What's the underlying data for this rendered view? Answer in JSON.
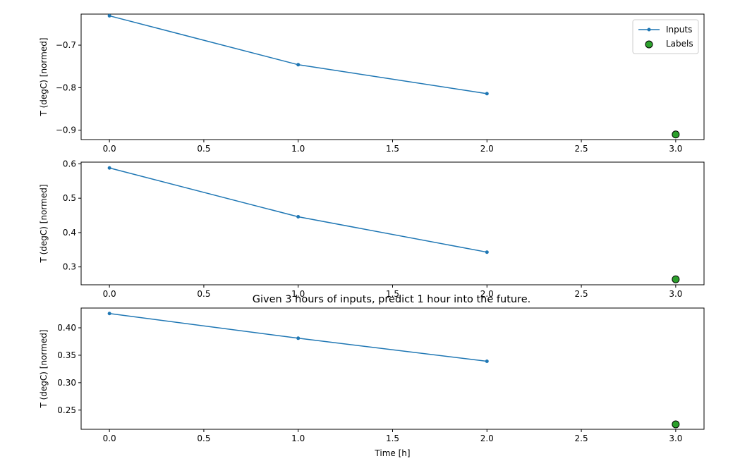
{
  "figure": {
    "title": "Given 3 hours of inputs, predict 1 hour into the future."
  },
  "legend": {
    "placement": "top-right",
    "entries": [
      "Inputs",
      "Labels"
    ]
  },
  "colors": {
    "inputs": "#1f77b4",
    "labels_fill": "#2ca02c",
    "labels_edge": "#000000",
    "axes": "#000000"
  },
  "chart_data": [
    {
      "type": "line",
      "xlabel": "",
      "ylabel": "T (degC) [normed]",
      "xlim": [
        -0.15,
        3.15
      ],
      "ylim": [
        -0.922,
        -0.627
      ],
      "grid": false,
      "xticks": [
        0.0,
        0.5,
        1.0,
        1.5,
        2.0,
        2.5,
        3.0
      ],
      "xtick_labels": [
        "0.0",
        "0.5",
        "1.0",
        "1.5",
        "2.0",
        "2.5",
        "3.0"
      ],
      "yticks": [
        -0.7,
        -0.8,
        -0.9
      ],
      "ytick_labels": [
        "−0.7",
        "−0.8",
        "−0.9"
      ],
      "series": [
        {
          "name": "Inputs",
          "kind": "line-marker",
          "x": [
            0,
            1,
            2
          ],
          "y": [
            -0.631,
            -0.746,
            -0.814
          ]
        },
        {
          "name": "Labels",
          "kind": "scatter",
          "x": [
            3
          ],
          "y": [
            -0.91
          ]
        }
      ]
    },
    {
      "type": "line",
      "xlabel": "",
      "ylabel": "T (degC) [normed]",
      "xlim": [
        -0.15,
        3.15
      ],
      "ylim": [
        0.248,
        0.605
      ],
      "grid": false,
      "xticks": [
        0.0,
        0.5,
        1.0,
        1.5,
        2.0,
        2.5,
        3.0
      ],
      "xtick_labels": [
        "0.0",
        "0.5",
        "1.0",
        "1.5",
        "2.0",
        "2.5",
        "3.0"
      ],
      "yticks": [
        0.6,
        0.5,
        0.4,
        0.3
      ],
      "ytick_labels": [
        "0.6",
        "0.5",
        "0.4",
        "0.3"
      ],
      "series": [
        {
          "name": "Inputs",
          "kind": "line-marker",
          "x": [
            0,
            1,
            2
          ],
          "y": [
            0.588,
            0.446,
            0.343
          ]
        },
        {
          "name": "Labels",
          "kind": "scatter",
          "x": [
            3
          ],
          "y": [
            0.264
          ]
        }
      ]
    },
    {
      "type": "line",
      "xlabel": "Time [h]",
      "ylabel": "T (degC) [normed]",
      "xlim": [
        -0.15,
        3.15
      ],
      "ylim": [
        0.215,
        0.436
      ],
      "grid": false,
      "xticks": [
        0.0,
        0.5,
        1.0,
        1.5,
        2.0,
        2.5,
        3.0
      ],
      "xtick_labels": [
        "0.0",
        "0.5",
        "1.0",
        "1.5",
        "2.0",
        "2.5",
        "3.0"
      ],
      "yticks": [
        0.4,
        0.35,
        0.3,
        0.25
      ],
      "ytick_labels": [
        "0.40",
        "0.35",
        "0.30",
        "0.25"
      ],
      "series": [
        {
          "name": "Inputs",
          "kind": "line-marker",
          "x": [
            0,
            1,
            2
          ],
          "y": [
            0.426,
            0.381,
            0.339
          ]
        },
        {
          "name": "Labels",
          "kind": "scatter",
          "x": [
            3
          ],
          "y": [
            0.224
          ]
        }
      ]
    }
  ]
}
